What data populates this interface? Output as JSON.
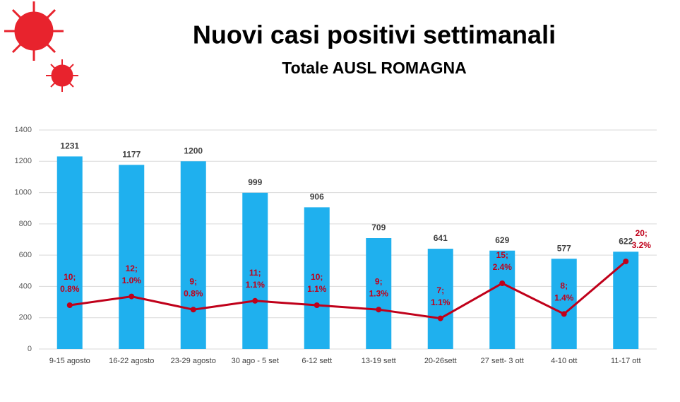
{
  "chart_data": {
    "type": "bar+line",
    "title": "Nuovi casi positivi settimanali",
    "subtitle": "Totale AUSL ROMAGNA",
    "categories": [
      "9-15 agosto",
      "16-22 agosto",
      "23-29 agosto",
      "30 ago - 5 set",
      "6-12 sett",
      "13-19 sett",
      "20-26sett",
      "27 sett- 3 ott",
      "4-10 ott",
      "11-17 ott"
    ],
    "series": [
      {
        "type": "bar",
        "color": "#1fb0ee",
        "values": [
          1231,
          1177,
          1200,
          999,
          906,
          709,
          641,
          629,
          577,
          622
        ]
      },
      {
        "type": "line",
        "axis": "y2",
        "color": "#c0001a",
        "values": [
          10,
          12,
          9,
          11,
          10,
          9,
          7,
          15,
          8,
          20
        ],
        "value_labels": [
          [
            "10;",
            "0.8%"
          ],
          [
            "12;",
            "1.0%"
          ],
          [
            "9;",
            "0.8%"
          ],
          [
            "11;",
            "1.1%"
          ],
          [
            "10;",
            "1.1%"
          ],
          [
            "9;",
            "1.3%"
          ],
          [
            "7;",
            "1.1%"
          ],
          [
            "15;",
            "2.4%"
          ],
          [
            "8;",
            "1.4%"
          ],
          [
            "20;",
            "3.2%"
          ]
        ]
      }
    ],
    "ylim": [
      0,
      1400
    ],
    "yticks": [
      0,
      200,
      400,
      600,
      800,
      1000,
      1200,
      1400
    ],
    "y2lim": [
      0,
      50
    ],
    "grid": true
  }
}
